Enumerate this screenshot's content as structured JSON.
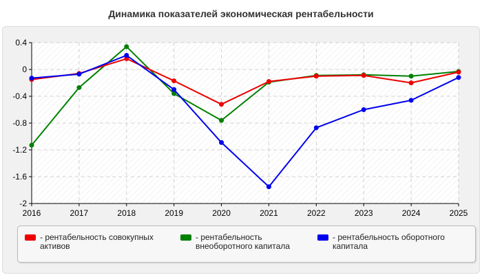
{
  "chart_data": {
    "type": "line",
    "title": "Динамика показателей экономическая рентабельности",
    "x": [
      "2016",
      "2017",
      "2018",
      "2019",
      "2020",
      "2021",
      "2022",
      "2023",
      "2024",
      "2025"
    ],
    "ylim": [
      -2,
      0.4
    ],
    "yticks": [
      "0.4",
      "0",
      "-0.4",
      "-0.8",
      "-1.2",
      "-1.6",
      "-2"
    ],
    "ytick_values": [
      0.4,
      0,
      -0.4,
      -0.8,
      -1.2,
      -1.6,
      -2
    ],
    "grid": true,
    "legend_position": "bottom",
    "series": [
      {
        "name": "- рентабельность совокупных активов",
        "color": "#ee0000",
        "values": [
          -0.15,
          -0.06,
          0.16,
          -0.17,
          -0.52,
          -0.18,
          -0.1,
          -0.09,
          -0.2,
          -0.04
        ]
      },
      {
        "name": "- рентабельность внеоборотного капитала",
        "color": "#008000",
        "values": [
          -1.13,
          -0.27,
          0.34,
          -0.36,
          -0.76,
          -0.19,
          -0.09,
          -0.08,
          -0.1,
          -0.03
        ]
      },
      {
        "name": "- рентабельность оборотного капитала",
        "color": "#0000ee",
        "values": [
          -0.13,
          -0.07,
          0.21,
          -0.3,
          -1.09,
          -1.75,
          -0.87,
          -0.6,
          -0.46,
          -0.12
        ]
      }
    ]
  }
}
